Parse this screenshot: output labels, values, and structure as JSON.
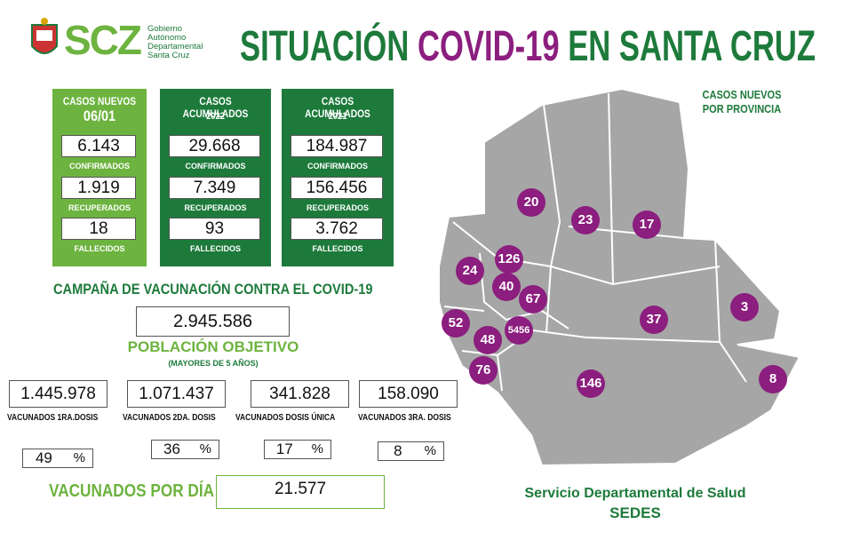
{
  "header": {
    "logo_text": "SCZ",
    "logo_sub": [
      "Gobierno",
      "Autónomo",
      "Departamental",
      "Santa Cruz"
    ],
    "title_part1": "SITUACIÓN",
    "title_part2": "COVID-19",
    "title_part3": "EN SANTA CRUZ"
  },
  "cards": [
    {
      "title": "CASOS NUEVOS",
      "subtitle": "06/01",
      "stats": [
        {
          "value": "6.143",
          "label": "CONFIRMADOS"
        },
        {
          "value": "1.919",
          "label": "RECUPERADOS"
        },
        {
          "value": "18",
          "label": "FALLECIDOS"
        }
      ]
    },
    {
      "title": "CASOS ACUMULADOS",
      "subtitle": "2022",
      "stats": [
        {
          "value": "29.668",
          "label": "CONFIRMADOS"
        },
        {
          "value": "7.349",
          "label": "RECUPERADOS"
        },
        {
          "value": "93",
          "label": "FALLECIDOS"
        }
      ]
    },
    {
      "title": "CASOS ACUMULADOS",
      "subtitle": "2021",
      "stats": [
        {
          "value": "184.987",
          "label": "CONFIRMADOS"
        },
        {
          "value": "156.456",
          "label": "RECUPERADOS"
        },
        {
          "value": "3.762",
          "label": "FALLECIDOS"
        }
      ]
    }
  ],
  "vaccination": {
    "title": "CAMPAÑA DE VACUNACIÓN CONTRA EL COVID-19",
    "target_value": "2.945.586",
    "target_label": "POBLACIÓN OBJETIVO",
    "target_note": "(MAYORES DE 5 AÑOS)",
    "doses": [
      {
        "value": "1.445.978",
        "label": "VACUNADOS 1RA.DOSIS",
        "percent": "49"
      },
      {
        "value": "1.071.437",
        "label": "VACUNADOS 2DA. DOSIS",
        "percent": "36"
      },
      {
        "value": "341.828",
        "label": "VACUNADOS DOSIS ÚNICA",
        "percent": "17"
      },
      {
        "value": "158.090",
        "label": "VACUNADOS 3RA. DOSIS",
        "percent": "8"
      }
    ],
    "percent_unit": "%",
    "daily_label": "VACUNADOS POR DÍA",
    "daily_value": "21.577"
  },
  "map": {
    "title_line1": "CASOS NUEVOS",
    "title_line2": "POR PROVINCIA",
    "provinces": [
      "20",
      "23",
      "17",
      "126",
      "24",
      "40",
      "67",
      "52",
      "48",
      "5456",
      "37",
      "3",
      "76",
      "146",
      "8"
    ]
  },
  "footer": {
    "line1": "Servicio Departamental de Salud",
    "line2": "SEDES"
  }
}
